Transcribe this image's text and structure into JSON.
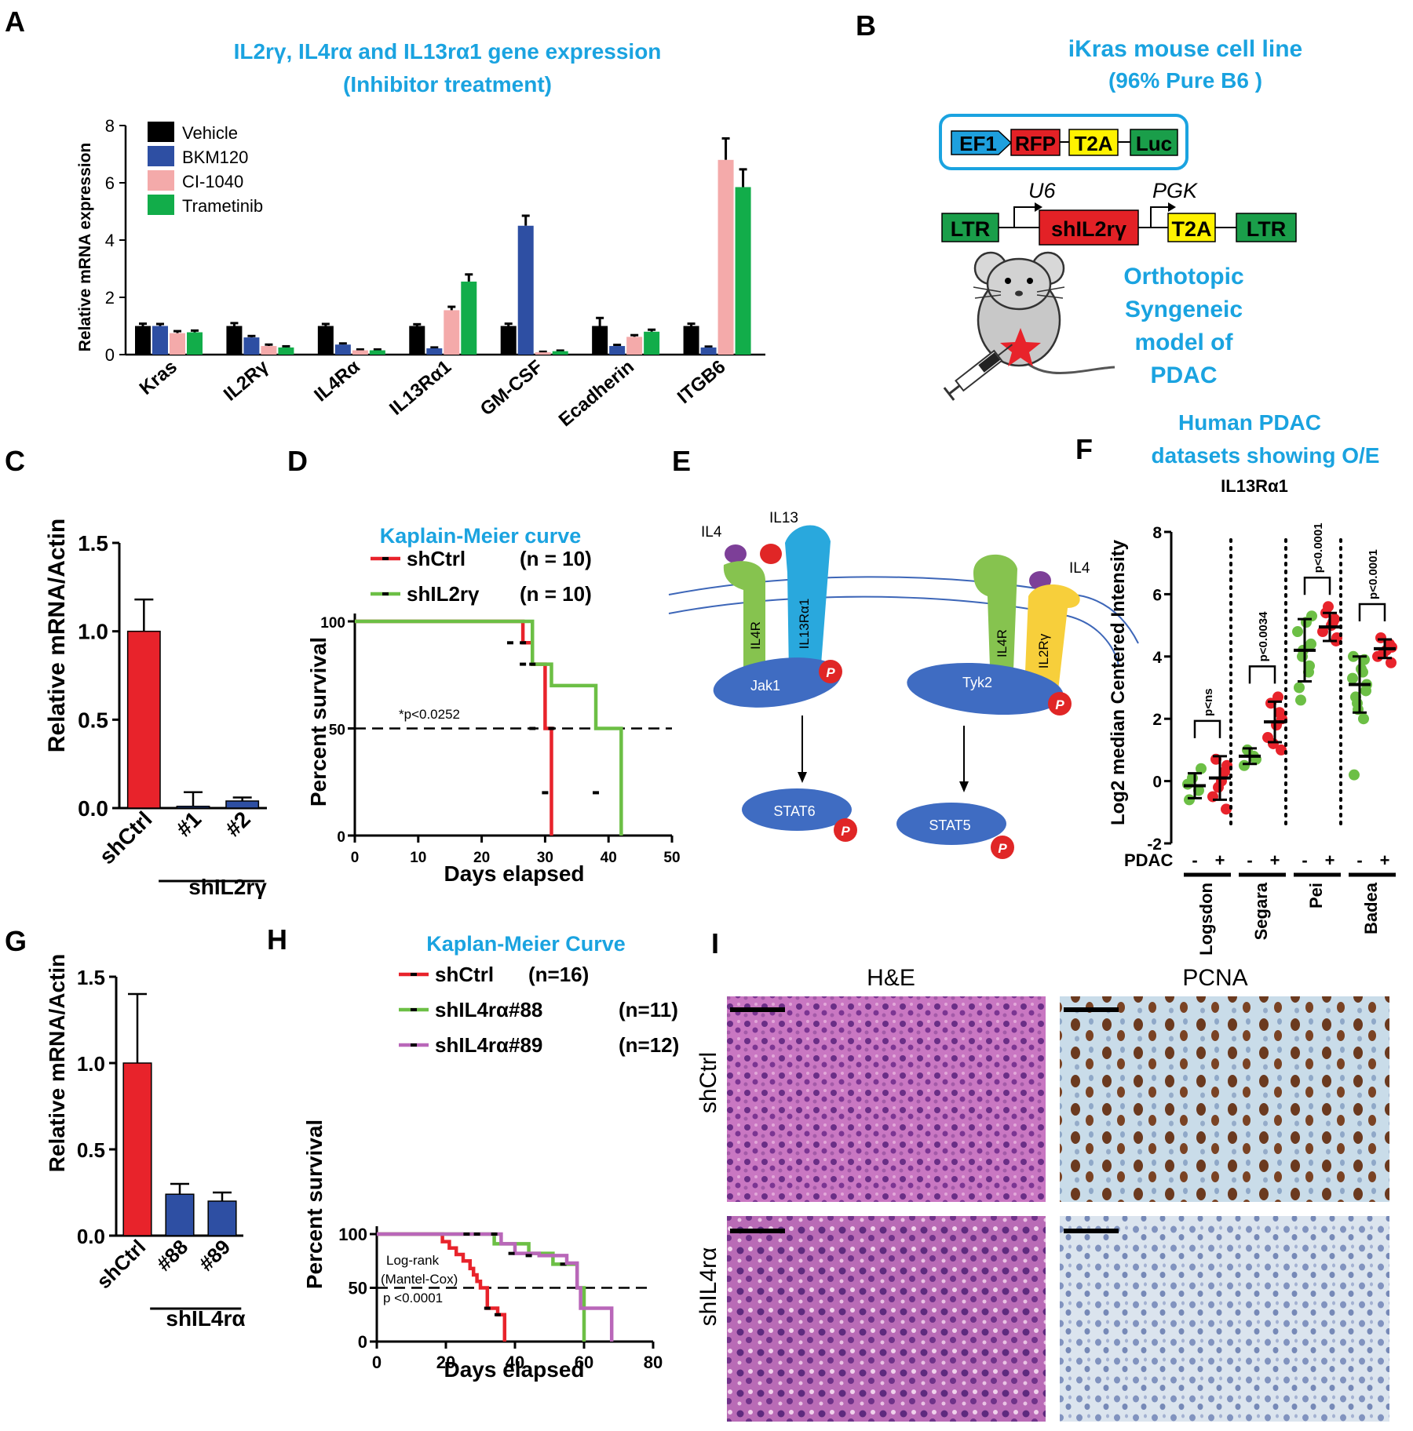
{
  "colors": {
    "title": "#1aa3e0",
    "red": "#e8232b",
    "green": "#6cbf45",
    "purple": "#b967b9",
    "blue": "#2e4fa3",
    "pink": "#f4aaaa",
    "trametinib": "#12ad4a",
    "black": "#000000",
    "jak": "#3f6cc2",
    "il4r": "#86c34f",
    "il13": "#29a8dd",
    "il2r": "#f7cf3b",
    "ligand_il4": "#7d3f98",
    "ligand_il13": "#e02626"
  },
  "panel_letters": [
    "A",
    "B",
    "C",
    "D",
    "E",
    "F",
    "G",
    "H",
    "I"
  ],
  "chart_data": [
    {
      "id": "A",
      "type": "bar",
      "title": "IL2rγ, IL4rα and IL13rα1 gene expression",
      "subtitle": "(Inhibitor treatment)",
      "ylabel": "Relative mRNA expression",
      "ylim": [
        0,
        8
      ],
      "yticks": [
        "0",
        "2",
        "4",
        "6",
        "8"
      ],
      "categories": [
        "Kras",
        "IL2Rγ",
        "IL4Rα",
        "IL13Rα1",
        "GM-CSF",
        "Ecadherin",
        "ITGB6"
      ],
      "series": [
        {
          "name": "Vehicle",
          "color": "#000000",
          "values": [
            1.0,
            1.0,
            1.0,
            1.0,
            1.0,
            1.0,
            1.0
          ],
          "errors": [
            0.08,
            0.1,
            0.07,
            0.06,
            0.08,
            0.28,
            0.08
          ]
        },
        {
          "name": "BKM120",
          "color": "#2e4fa3",
          "values": [
            1.0,
            0.6,
            0.35,
            0.22,
            4.5,
            0.3,
            0.25
          ],
          "errors": [
            0.07,
            0.05,
            0.04,
            0.03,
            0.35,
            0.04,
            0.03
          ]
        },
        {
          "name": "CI-1040",
          "color": "#f4aaaa",
          "values": [
            0.75,
            0.3,
            0.15,
            1.55,
            0.08,
            0.62,
            6.8
          ],
          "errors": [
            0.07,
            0.05,
            0.03,
            0.12,
            0.02,
            0.06,
            0.75
          ]
        },
        {
          "name": "Trametinib",
          "color": "#12ad4a",
          "values": [
            0.78,
            0.25,
            0.15,
            2.55,
            0.12,
            0.8,
            5.85
          ],
          "errors": [
            0.06,
            0.04,
            0.03,
            0.25,
            0.02,
            0.07,
            0.62
          ]
        }
      ]
    },
    {
      "id": "C",
      "type": "bar",
      "ylabel": "Relative mRNA/Actin",
      "ylim": [
        0,
        1.5
      ],
      "yticks": [
        "0.0",
        "0.5",
        "1.0",
        "1.5"
      ],
      "categories": [
        "shCtrl",
        "#1",
        "#2"
      ],
      "group_label": "shIL2rγ",
      "values": [
        1.0,
        0.01,
        0.04
      ],
      "errors": [
        0.18,
        0.08,
        0.02
      ],
      "colors": [
        "#e8232b",
        "#2e4fa3",
        "#2e4fa3"
      ]
    },
    {
      "id": "D",
      "type": "line",
      "title": "Kaplain-Meier curve",
      "xlabel": "Days elapsed",
      "ylabel": "Percent survival",
      "xlim": [
        0,
        50
      ],
      "ylim": [
        0,
        100
      ],
      "xticks": [
        "0",
        "10",
        "20",
        "30",
        "40",
        "50"
      ],
      "yticks": [
        "0",
        "50",
        "100"
      ],
      "annotation": "*p<0.0252",
      "series": [
        {
          "name": "shCtrl",
          "n_label": "(n = 10)",
          "color": "#e8232b",
          "x": [
            0,
            24.5,
            26.5,
            28,
            30,
            31
          ],
          "y": [
            100,
            100,
            90,
            80,
            50,
            0
          ],
          "censor_x": [
            24.5,
            26.5,
            28,
            30
          ],
          "censor_y": [
            90,
            80,
            50,
            20
          ]
        },
        {
          "name": "shIL2rγ",
          "n_label": "(n = 10)",
          "color": "#6cbf45",
          "x": [
            0,
            26.5,
            28,
            31,
            38,
            42
          ],
          "y": [
            100,
            100,
            80,
            70,
            50,
            0
          ],
          "censor_x": [
            26.5,
            28,
            31,
            38
          ],
          "censor_y": [
            90,
            80,
            50,
            20
          ]
        }
      ]
    },
    {
      "id": "F",
      "type": "scatter",
      "title": "Human PDAC",
      "subtitle": "datasets showing O/E",
      "gene": "IL13Rα1",
      "ylabel": "Log2 median Centered Intensity",
      "ylim": [
        -2,
        8
      ],
      "yticks": [
        "-2",
        "0",
        "2",
        "4",
        "6",
        "8"
      ],
      "row_label": "PDAC",
      "datasets": [
        {
          "name": "Logsdon",
          "p": "p<ns",
          "minus_mean": -0.15,
          "minus_sd": 0.4,
          "plus_mean": 0.1,
          "plus_sd": 0.7,
          "minus_pts": [
            -0.6,
            -0.3,
            0.1,
            0.4,
            -0.1
          ],
          "plus_pts": [
            -0.9,
            -0.5,
            0.0,
            0.3,
            0.7,
            0.5,
            -0.2
          ]
        },
        {
          "name": "Segara",
          "p": "p<0.0034",
          "minus_mean": 0.8,
          "minus_sd": 0.25,
          "plus_mean": 1.9,
          "plus_sd": 0.65,
          "minus_pts": [
            0.5,
            0.8,
            1.0,
            0.7
          ],
          "plus_pts": [
            1.0,
            1.4,
            1.8,
            2.2,
            2.5,
            2.0,
            1.2,
            2.7
          ]
        },
        {
          "name": "Pei",
          "p": "p<0.0001",
          "minus_mean": 4.2,
          "minus_sd": 1.0,
          "plus_mean": 4.95,
          "plus_sd": 0.45,
          "minus_pts": [
            3.0,
            3.5,
            4.0,
            4.4,
            4.8,
            5.1,
            3.7,
            2.6,
            5.3,
            4.2
          ],
          "plus_pts": [
            4.5,
            4.8,
            5.0,
            5.2,
            5.4,
            4.6,
            5.6,
            5.1
          ]
        },
        {
          "name": "Badea",
          "p": "p<0.0001",
          "minus_mean": 3.1,
          "minus_sd": 0.9,
          "plus_mean": 4.25,
          "plus_sd": 0.3,
          "minus_pts": [
            0.2,
            2.0,
            2.5,
            2.9,
            3.3,
            3.6,
            3.9,
            2.7,
            3.1,
            2.3,
            3.5,
            4.0
          ],
          "plus_pts": [
            3.8,
            4.0,
            4.2,
            4.4,
            4.6,
            4.3,
            4.1
          ]
        }
      ]
    },
    {
      "id": "G",
      "type": "bar",
      "ylabel": "Relative mRNA/Actin",
      "ylim": [
        0,
        1.5
      ],
      "yticks": [
        "0.0",
        "0.5",
        "1.0",
        "1.5"
      ],
      "categories": [
        "shCtrl",
        "#88",
        "#89"
      ],
      "group_label": "shIL4rα",
      "values": [
        1.0,
        0.24,
        0.2
      ],
      "errors": [
        0.4,
        0.06,
        0.05
      ],
      "colors": [
        "#e8232b",
        "#2e4fa3",
        "#2e4fa3"
      ]
    },
    {
      "id": "H",
      "type": "line",
      "title": "Kaplan-Meier  Curve",
      "xlabel": "Days elapsed",
      "ylabel": "Percent survival",
      "xlim": [
        0,
        80
      ],
      "ylim": [
        0,
        100
      ],
      "xticks": [
        "0",
        "20",
        "40",
        "60",
        "80"
      ],
      "yticks": [
        "0",
        "50",
        "100"
      ],
      "annotation_lines": [
        "Log-rank",
        "(Mantel-Cox)",
        "p <0.0001"
      ],
      "series": [
        {
          "name": "shCtrl",
          "n_label": "(n=16)",
          "color": "#e8232b",
          "x": [
            0,
            17,
            19,
            21,
            23,
            25,
            27,
            28,
            29,
            30,
            32,
            35,
            37
          ],
          "y": [
            100,
            100,
            93,
            87,
            81,
            75,
            68,
            62,
            56,
            50,
            31,
            25,
            0
          ],
          "censor_x": [
            32,
            35
          ],
          "censor_y": [
            31,
            25
          ]
        },
        {
          "name": "shIL4rα#88",
          "n_label": "(n=11)",
          "color": "#6cbf45",
          "x": [
            0,
            31,
            34,
            44,
            51,
            58,
            60
          ],
          "y": [
            100,
            100,
            91,
            82,
            72,
            50,
            0
          ],
          "censor_x": [
            24,
            26,
            28,
            30,
            54
          ],
          "censor_y": [
            100,
            100,
            100,
            100,
            72
          ]
        },
        {
          "name": "shIL4rα#89",
          "n_label": "(n=12)",
          "color": "#b967b9",
          "x": [
            0,
            33,
            36,
            40,
            47,
            55,
            58,
            59,
            68
          ],
          "y": [
            100,
            100,
            91,
            82,
            80,
            73,
            50,
            31,
            0
          ],
          "censor_x": [
            26,
            29,
            34,
            39,
            44
          ],
          "censor_y": [
            100,
            100,
            100,
            82,
            80
          ]
        }
      ]
    }
  ],
  "panel_B": {
    "title_line1": "iKras mouse cell line",
    "title_line2": "(96% Pure B6 )",
    "construct1": [
      "EF1",
      "RFP",
      "T2A",
      "Luc"
    ],
    "construct2": [
      "LTR",
      "shIL2rγ",
      "T2A",
      "LTR"
    ],
    "promoter_u6": "U6",
    "promoter_pgk": "PGK",
    "model_lines": [
      "Orthotopic",
      "Syngeneic",
      "model of",
      "PDAC"
    ]
  },
  "panel_E": {
    "ligand_il4_left": "IL4",
    "ligand_il13": "IL13",
    "ligand_il4_right": "IL4",
    "receptors_left": [
      "IL4R",
      "IL13Rα1"
    ],
    "kinase_left": "Jak1",
    "stat_left": "STAT6",
    "receptors_right": [
      "IL4R",
      "IL2Rγ"
    ],
    "kinase_right": "Tyk2",
    "stat_right": "STAT5",
    "phospho": "P"
  },
  "panel_I": {
    "col_labels": [
      "H&E",
      "PCNA"
    ],
    "row_labels": [
      "shCtrl",
      "shIL4rα"
    ]
  }
}
